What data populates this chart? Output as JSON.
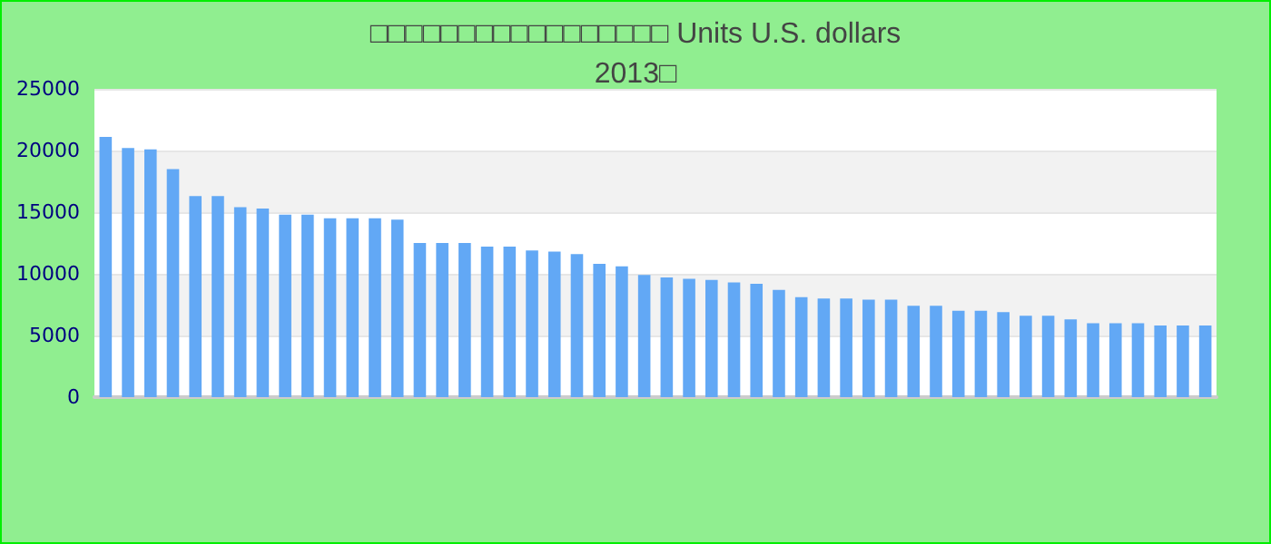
{
  "chart_data": {
    "type": "bar",
    "title": "□□□□□□□□□□□□□□□□□ Units U.S. dollars\n2013□",
    "categories": [
      null,
      null,
      null,
      null,
      null,
      null,
      null,
      null,
      null,
      null,
      null,
      null,
      null,
      null,
      null,
      null,
      null,
      null,
      null,
      null,
      null,
      null,
      null,
      null,
      null,
      null,
      null,
      null,
      null,
      null,
      null,
      null,
      null,
      null,
      null,
      null,
      null,
      null,
      null,
      null,
      null,
      null,
      null,
      null,
      null,
      null,
      null,
      null,
      null,
      null
    ],
    "values": [
      21100,
      20200,
      20100,
      18500,
      16300,
      16300,
      15400,
      15300,
      14800,
      14800,
      14500,
      14500,
      14500,
      14400,
      12500,
      12500,
      12500,
      12200,
      12200,
      11900,
      11800,
      11600,
      10800,
      10600,
      9900,
      9700,
      9600,
      9500,
      9300,
      9200,
      8700,
      8100,
      8000,
      8000,
      7900,
      7900,
      7400,
      7400,
      7000,
      7000,
      6900,
      6600,
      6600,
      6300,
      6000,
      6000,
      6000,
      5800,
      5800,
      5800
    ],
    "color": "#62a8f5",
    "ylim": [
      0,
      25000
    ],
    "yticks": [
      0,
      5000,
      10000,
      15000,
      20000,
      25000
    ],
    "grid": true
  }
}
